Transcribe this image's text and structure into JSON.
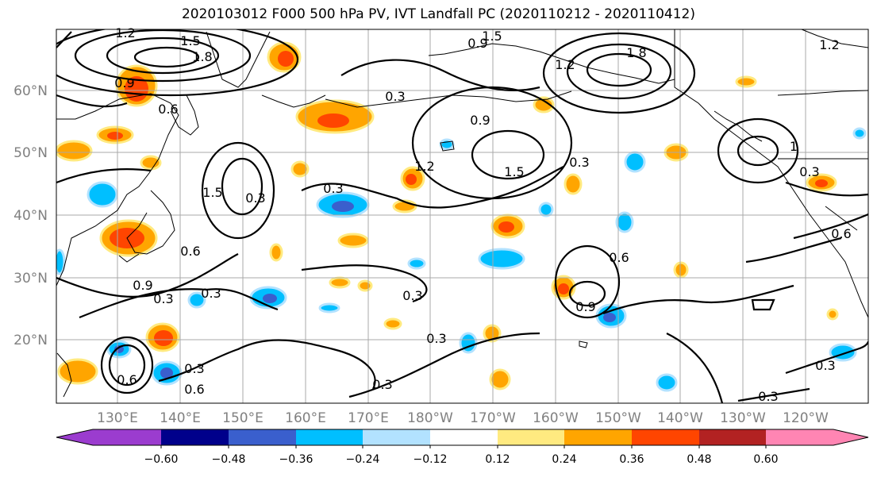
{
  "title": "2020103012 F000 500 hPa PV, IVT Landfall PC (2020110212 - 2020110412)",
  "lat_labels": [
    "60°N",
    "50°N",
    "40°N",
    "30°N",
    "20°N"
  ],
  "lon_labels": [
    "130°E",
    "140°E",
    "150°E",
    "160°E",
    "170°E",
    "180°W",
    "170°W",
    "160°W",
    "150°W",
    "140°W",
    "130°W",
    "120°W"
  ],
  "colorbar": {
    "ticks": [
      "−0.60",
      "−0.48",
      "−0.36",
      "−0.24",
      "−0.12",
      "0.12",
      "0.24",
      "0.36",
      "0.48",
      "0.60"
    ],
    "colors": [
      "#9b3ccf",
      "#00008b",
      "#3a5fcd",
      "#00bfff",
      "#b2e2ff",
      "#ffffff",
      "#ffea80",
      "#ffa500",
      "#ff4500",
      "#b22222",
      "#ff85b3"
    ]
  },
  "contour_labels": [
    "1.2",
    "1.5",
    "1.8",
    "0.9",
    "0.6",
    "0.3",
    "1.8",
    "1.5",
    "1.2",
    "0.9",
    "0.3",
    "0.9",
    "1.5",
    "1.2",
    "0.3",
    "0.3",
    "1.2",
    "1",
    "0.3",
    "0.6",
    "0.9",
    "0.3",
    "0.3",
    "0.3",
    "0.6",
    "0.9",
    "0.3",
    "0.6",
    "0.3",
    "0.3",
    "0.3",
    "0.6",
    "1.5",
    "0.3",
    "0.6"
  ]
}
